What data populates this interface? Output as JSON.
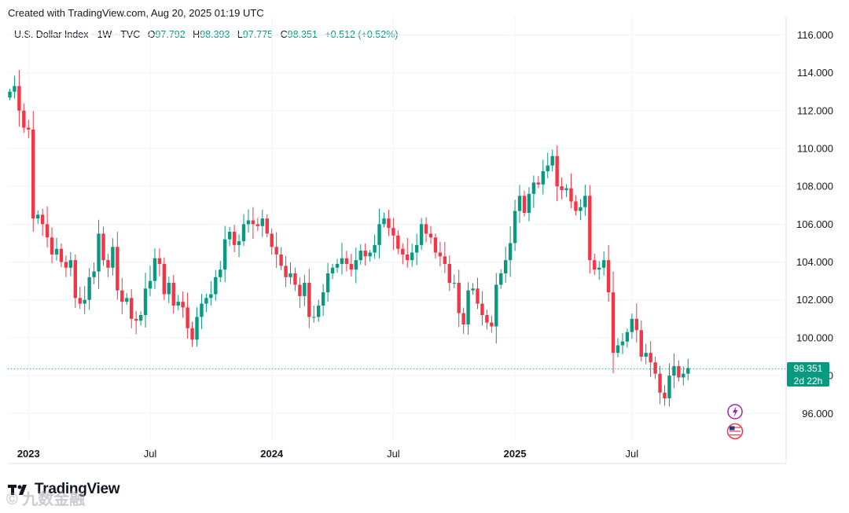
{
  "header": {
    "created_text": "Created with TradingView.com, Aug 20, 2025 01:19 UTC"
  },
  "legend": {
    "symbol": "U.S. Dollar Index · 1W · TVC",
    "o_label": "O",
    "o_value": "97.792",
    "h_label": "H",
    "h_value": "98.393",
    "l_label": "L",
    "l_value": "97.775",
    "c_label": "C",
    "c_value": "98.351",
    "change": "+0.512 (+0.52%)"
  },
  "price_tag": {
    "price": "98.351",
    "countdown": "2d 22h"
  },
  "logo": {
    "text": "TradingView"
  },
  "watermark": {
    "text": "© 九数金融"
  },
  "colors": {
    "up": "#089981",
    "down": "#F23645",
    "grid": "#F0F3FA",
    "last_line": "#089981"
  },
  "chart_data": {
    "type": "candlestick",
    "title": "U.S. Dollar Index · 1W · TVC",
    "y_ticks": [
      "96.000",
      "98.000",
      "100.000",
      "102.000",
      "104.000",
      "106.000",
      "108.000",
      "110.000",
      "112.000",
      "114.000",
      "116.000"
    ],
    "x_ticks": [
      {
        "label": "2023",
        "week": 4,
        "bold": true
      },
      {
        "label": "Jul",
        "week": 30,
        "bold": false
      },
      {
        "label": "2024",
        "week": 56,
        "bold": true
      },
      {
        "label": "Jul",
        "week": 82,
        "bold": false
      },
      {
        "label": "2025",
        "week": 108,
        "bold": true
      },
      {
        "label": "Jul",
        "week": 133,
        "bold": false
      }
    ],
    "ylim": [
      94.6,
      116.6
    ],
    "last_price": 98.351,
    "grid": true,
    "close_series": [
      113.0,
      113.3,
      112.0,
      111.1,
      111.0,
      106.3,
      106.5,
      106.0,
      105.3,
      104.4,
      104.7,
      104.0,
      103.7,
      104.1,
      102.1,
      101.8,
      102.0,
      103.2,
      103.5,
      105.5,
      104.1,
      103.7,
      104.8,
      102.5,
      101.9,
      102.1,
      101.0,
      100.9,
      101.2,
      102.6,
      103.0,
      104.2,
      103.9,
      102.3,
      102.9,
      101.7,
      101.9,
      101.6,
      100.5,
      99.9,
      101.1,
      101.8,
      102.1,
      102.3,
      103.2,
      103.6,
      105.2,
      105.6,
      104.9,
      105.1,
      106.0,
      106.2,
      106.0,
      105.9,
      106.3,
      105.5,
      104.8,
      104.4,
      103.8,
      103.2,
      103.4,
      102.8,
      102.2,
      102.9,
      101.1,
      101.1,
      101.7,
      102.4,
      103.4,
      103.7,
      103.9,
      104.2,
      103.9,
      103.6,
      104.1,
      104.6,
      104.3,
      104.5,
      104.9,
      106.0,
      106.3,
      105.8,
      105.4,
      104.7,
      104.4,
      104.1,
      104.5,
      104.9,
      106.0,
      105.5,
      105.3,
      104.5,
      104.3,
      103.9,
      102.9,
      102.9,
      101.3,
      100.7,
      102.5,
      102.6,
      101.8,
      101.2,
      100.8,
      100.6,
      102.8,
      103.4,
      104.1,
      105.0,
      106.7,
      107.5,
      106.6,
      107.6,
      108.2,
      108.1,
      108.8,
      109.1,
      109.6,
      108.0,
      107.8,
      107.9,
      107.2,
      106.7,
      106.9,
      107.5,
      104.1,
      103.6,
      103.7,
      104.1,
      102.4,
      99.2,
      99.6,
      99.8,
      100.3,
      101.0,
      100.4,
      99.0,
      99.2,
      98.7,
      98.1,
      97.1,
      96.8,
      98.0,
      98.5,
      97.9,
      98.1,
      98.4
    ]
  }
}
